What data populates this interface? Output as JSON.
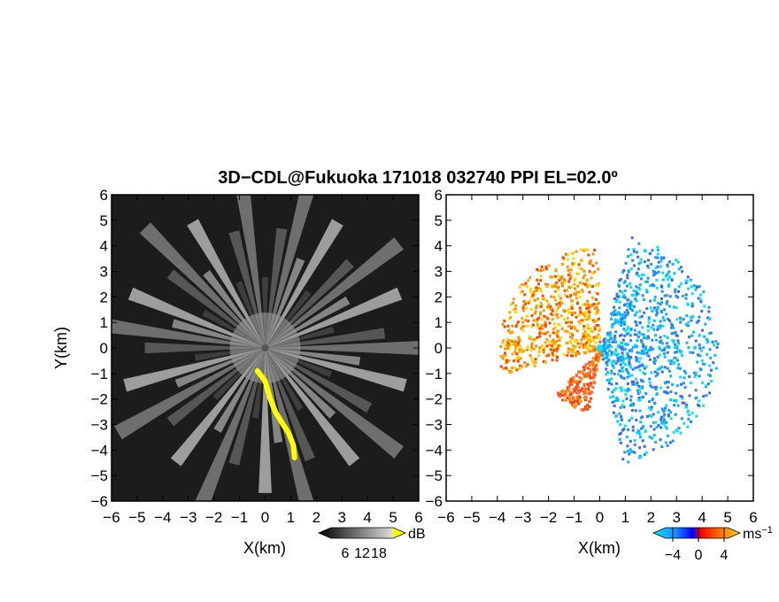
{
  "figure": {
    "title": "3D−CDL@Fukuoka 171018 032740 PPI EL=02.0º"
  },
  "chart_data": [
    {
      "type": "heatmap",
      "panel": "left",
      "xlabel": "X(km)",
      "ylabel": "Y(km)",
      "xlim": [
        -6,
        6
      ],
      "ylim": [
        -6,
        6
      ],
      "xticks": [
        "−6",
        "−5",
        "−4",
        "−3",
        "−2",
        "−1",
        "0",
        "1",
        "2",
        "3",
        "4",
        "5",
        "6"
      ],
      "yticks": [
        "−6",
        "−5",
        "−4",
        "−3",
        "−2",
        "−1",
        "0",
        "1",
        "2",
        "3",
        "4",
        "5",
        "6"
      ],
      "colorbar": {
        "unit": "dB",
        "tick_labels": [
          "6",
          "12",
          "18"
        ],
        "colors": [
          "#000000",
          "#1a1a1a",
          "#333333",
          "#555555",
          "#777777",
          "#999999",
          "#bbbbbb",
          "#dddddd",
          "#ffff00"
        ]
      },
      "background_color": "#1c1c1c",
      "highlight_color": "#ffff00",
      "highlight_path": [
        [
          -0.3,
          -0.9
        ],
        [
          0.0,
          -1.3
        ],
        [
          0.2,
          -2.0
        ],
        [
          0.4,
          -2.5
        ],
        [
          0.7,
          -3.0
        ],
        [
          0.9,
          -3.3
        ],
        [
          1.1,
          -3.8
        ],
        [
          1.15,
          -4.3
        ]
      ],
      "ray_azimuths_deg": [
        0,
        8,
        15,
        22,
        30,
        38,
        45,
        52,
        60,
        68,
        75,
        83,
        90,
        98,
        105,
        112,
        120,
        128,
        135,
        142,
        150,
        158,
        165,
        172,
        180,
        188,
        195,
        202,
        210,
        218,
        225,
        232,
        240,
        248,
        255,
        262,
        270,
        278,
        285,
        292,
        300,
        308,
        315,
        322,
        330,
        338,
        345,
        352
      ]
    },
    {
      "type": "heatmap",
      "panel": "right",
      "xlabel": "X(km)",
      "xlim": [
        -6,
        6
      ],
      "ylim": [
        -6,
        6
      ],
      "xticks": [
        "−6",
        "−5",
        "−4",
        "−3",
        "−2",
        "−1",
        "0",
        "1",
        "2",
        "3",
        "4",
        "5",
        "6"
      ],
      "yticks": [
        "−6",
        "−5",
        "−4",
        "−3",
        "−2",
        "−1",
        "0",
        "1",
        "2",
        "3",
        "4",
        "5",
        "6"
      ],
      "colorbar": {
        "unit": "ms",
        "unit_exponent": "−1",
        "tick_labels": [
          "−4",
          "0",
          "4"
        ],
        "tick_values": [
          -4,
          0,
          4
        ],
        "colors": [
          "#00e5ff",
          "#1e90ff",
          "#0000ff",
          "#ff0000",
          "#ff7f00",
          "#ffd700"
        ]
      },
      "sectors": [
        {
          "name": "approaching",
          "az_from": 15,
          "az_to": 170,
          "max_range_km": 4.6,
          "colors": [
            "#00bfff",
            "#1e90ff",
            "#4169e1",
            "#00e5ff"
          ]
        },
        {
          "name": "receding",
          "az_from": 255,
          "az_to": 358,
          "max_range_km": 4.0,
          "colors": [
            "#ff4500",
            "#ff8c00",
            "#ffa500",
            "#ffd700"
          ]
        },
        {
          "name": "receding-south",
          "az_from": 190,
          "az_to": 225,
          "max_range_km": 2.5,
          "colors": [
            "#ff6347",
            "#ff8c00",
            "#ff4500"
          ]
        }
      ]
    }
  ]
}
